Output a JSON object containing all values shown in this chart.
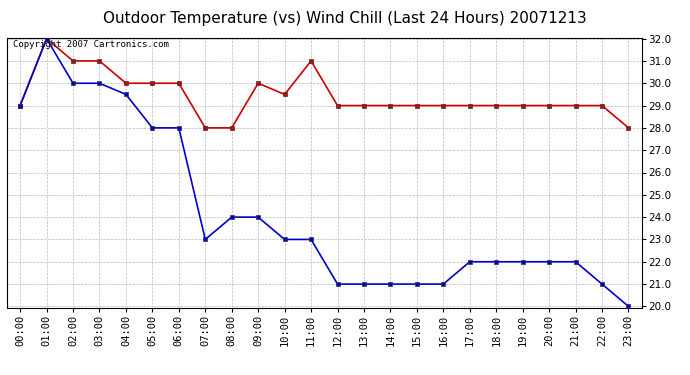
{
  "title": "Outdoor Temperature (vs) Wind Chill (Last 24 Hours) 20071213",
  "copyright": "Copyright 2007 Cartronics.com",
  "hours": [
    "00:00",
    "01:00",
    "02:00",
    "03:00",
    "04:00",
    "05:00",
    "06:00",
    "07:00",
    "08:00",
    "09:00",
    "10:00",
    "11:00",
    "12:00",
    "13:00",
    "14:00",
    "15:00",
    "16:00",
    "17:00",
    "18:00",
    "19:00",
    "20:00",
    "21:00",
    "22:00",
    "23:00"
  ],
  "temp": [
    29.0,
    32.0,
    31.0,
    31.0,
    30.0,
    30.0,
    30.0,
    28.0,
    28.0,
    30.0,
    29.5,
    31.0,
    29.0,
    29.0,
    29.0,
    29.0,
    29.0,
    29.0,
    29.0,
    29.0,
    29.0,
    29.0,
    29.0,
    28.0
  ],
  "windchill": [
    29.0,
    32.0,
    30.0,
    30.0,
    29.5,
    28.0,
    28.0,
    23.0,
    24.0,
    24.0,
    23.0,
    23.0,
    21.0,
    21.0,
    21.0,
    21.0,
    21.0,
    22.0,
    22.0,
    22.0,
    22.0,
    22.0,
    21.0,
    20.0
  ],
  "temp_color": "#cc0000",
  "windchill_color": "#0000cc",
  "background_color": "#ffffff",
  "plot_bg_color": "#ffffff",
  "grid_color": "#bbbbbb",
  "ylim_min": 20.0,
  "ylim_max": 32.0,
  "ytick_interval": 1.0,
  "title_fontsize": 11,
  "tick_fontsize": 7.5,
  "marker": "s",
  "markersize": 3,
  "linewidth": 1.2
}
